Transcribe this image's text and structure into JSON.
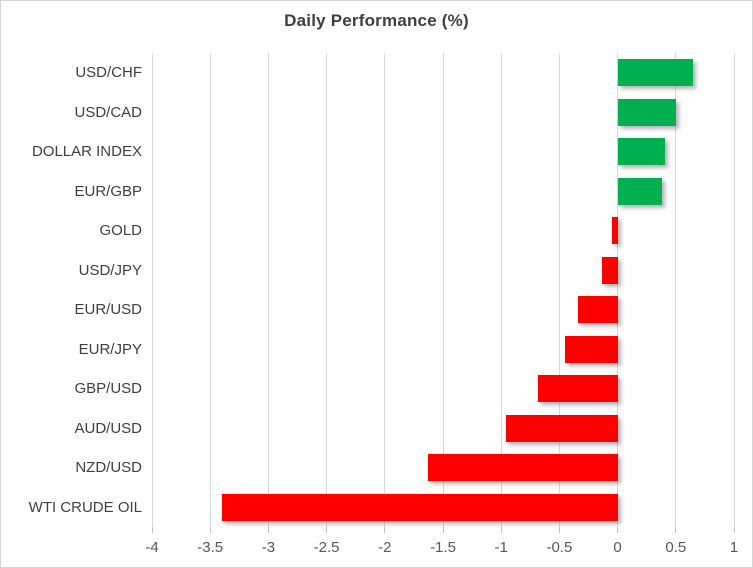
{
  "chart_data": {
    "type": "bar",
    "orientation": "horizontal",
    "title": "Daily Performance (%)",
    "categories": [
      "USD/CHF",
      "USD/CAD",
      "DOLLAR INDEX",
      "EUR/GBP",
      "GOLD",
      "USD/JPY",
      "EUR/USD",
      "EUR/JPY",
      "GBP/USD",
      "AUD/USD",
      "NZD/USD",
      "WTI CRUDE OIL"
    ],
    "values": [
      0.65,
      0.5,
      0.41,
      0.38,
      -0.05,
      -0.13,
      -0.34,
      -0.45,
      -0.68,
      -0.96,
      -1.63,
      -3.4
    ],
    "xlabel": "",
    "ylabel": "",
    "xlim": [
      -4,
      1
    ],
    "x_ticks": [
      -4,
      -3.5,
      -3,
      -2.5,
      -2,
      -1.5,
      -1,
      -0.5,
      0,
      0.5,
      1
    ],
    "x_tick_labels": [
      "-4",
      "-3.5",
      "-3",
      "-2.5",
      "-2",
      "-1.5",
      "-1",
      "-0.5",
      "0",
      "0.5",
      "1"
    ],
    "grid": true,
    "legend": "none",
    "colors": {
      "positive": "#00B050",
      "negative": "#FF0000",
      "gridline": "#D9D9D9",
      "tick_mark": "#BFBFBF",
      "title_text": "#3F3F3F",
      "category_text": "#404040",
      "tick_text": "#595959",
      "border": "#D6D6D6",
      "background": "#FFFFFF"
    }
  }
}
